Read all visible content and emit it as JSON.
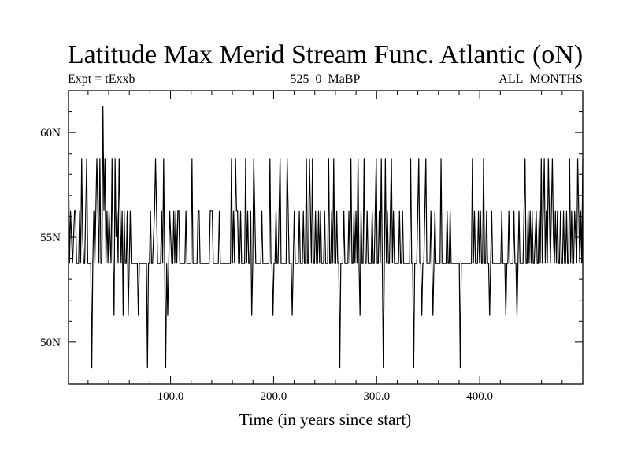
{
  "chart_data": {
    "type": "line",
    "title": "Latitude Max Merid Stream Func. Atlantic (oN)",
    "subtitle_left": "Expt = tExxb",
    "subtitle_center": "525_0_MaBP",
    "subtitle_right": "ALL_MONTHS",
    "xlabel": "Time (in years since start)",
    "ylabel": "",
    "xlim": [
      1,
      500
    ],
    "ylim": [
      48,
      62
    ],
    "x_ticks": [
      100,
      200,
      300,
      400
    ],
    "x_tick_labels": [
      "100.0",
      "200.0",
      "300.0",
      "400.0"
    ],
    "y_ticks": [
      50,
      55,
      60
    ],
    "y_tick_labels": [
      "50N",
      "55N",
      "60N"
    ],
    "grid": false,
    "series": [
      {
        "values": [
          58.75,
          53.75,
          56.25,
          55.0,
          53.75,
          55.0,
          56.25,
          56.25,
          53.75,
          53.75,
          53.75,
          56.25,
          53.75,
          58.75,
          55.0,
          53.75,
          53.75,
          56.25,
          58.75,
          53.75,
          53.75,
          53.75,
          53.75,
          48.75,
          53.75,
          56.25,
          53.75,
          56.25,
          58.75,
          56.25,
          53.75,
          58.75,
          53.75,
          53.75,
          61.25,
          56.25,
          58.75,
          53.75,
          56.25,
          53.75,
          56.25,
          55.0,
          53.75,
          58.75,
          53.75,
          51.25,
          58.75,
          55.0,
          56.25,
          53.75,
          58.75,
          56.25,
          53.75,
          56.25,
          51.25,
          56.25,
          53.75,
          53.75,
          56.25,
          51.25,
          53.75,
          56.25,
          53.75,
          53.75,
          53.75,
          53.75,
          53.75,
          53.75,
          53.75,
          51.25,
          53.75,
          53.75,
          53.75,
          53.75,
          53.75,
          53.75,
          53.75,
          53.75,
          48.75,
          53.75,
          53.75,
          56.25,
          53.75,
          53.75,
          55.0,
          56.25,
          58.75,
          56.25,
          53.75,
          53.75,
          53.75,
          53.75,
          56.25,
          53.75,
          58.75,
          53.75,
          48.75,
          53.75,
          51.25,
          53.75,
          56.25,
          55.0,
          53.75,
          53.75,
          56.25,
          53.75,
          56.25,
          53.75,
          56.25,
          56.25,
          53.75,
          53.75,
          53.75,
          53.75,
          53.75,
          53.75,
          56.25,
          53.75,
          53.75,
          53.75,
          53.75,
          53.75,
          58.75,
          53.75,
          53.75,
          53.75,
          53.75,
          53.75,
          56.25,
          56.25,
          53.75,
          53.75,
          53.75,
          53.75,
          53.75,
          53.75,
          53.75,
          53.75,
          53.75,
          53.75,
          56.25,
          56.25,
          56.25,
          53.75,
          53.75,
          53.75,
          53.75,
          53.75,
          53.75,
          56.25,
          53.75,
          53.75,
          53.75,
          53.75,
          53.75,
          53.75,
          53.75,
          53.75,
          53.75,
          53.75,
          53.75,
          58.75,
          53.75,
          56.25,
          53.75,
          58.75,
          56.25,
          56.25,
          53.75,
          53.75,
          56.25,
          53.75,
          53.75,
          53.75,
          53.75,
          58.75,
          53.75,
          56.25,
          53.75,
          53.75,
          56.25,
          51.25,
          53.75,
          58.75,
          56.25,
          53.75,
          53.75,
          53.75,
          53.75,
          53.75,
          53.75,
          56.25,
          53.75,
          53.75,
          53.75,
          53.75,
          53.75,
          53.75,
          53.75,
          58.75,
          53.75,
          53.75,
          51.25,
          53.75,
          53.75,
          56.25,
          53.75,
          53.75,
          56.25,
          58.75,
          53.75,
          53.75,
          53.75,
          53.75,
          53.75,
          53.75,
          58.75,
          56.25,
          53.75,
          53.75,
          53.75,
          51.25,
          53.75,
          56.25,
          53.75,
          53.75,
          53.75,
          53.75,
          56.25,
          53.75,
          53.75,
          53.75,
          56.25,
          53.75,
          53.75,
          58.75,
          53.75,
          53.75,
          58.75,
          56.25,
          53.75,
          58.75,
          53.75,
          53.75,
          56.25,
          53.75,
          53.75,
          56.25,
          53.75,
          56.25,
          53.75,
          53.75,
          53.75,
          56.25,
          53.75,
          53.75,
          53.75,
          58.75,
          53.75,
          53.75,
          56.25,
          53.75,
          58.75,
          53.75,
          53.75,
          56.25,
          53.75,
          53.75,
          48.75,
          53.75,
          53.75,
          53.75,
          56.25,
          53.75,
          53.75,
          53.75,
          53.75,
          56.25,
          53.75,
          58.75,
          53.75,
          53.75,
          56.25,
          53.75,
          56.25,
          53.75,
          58.75,
          53.75,
          51.25,
          56.25,
          53.75,
          53.75,
          58.75,
          53.75,
          53.75,
          56.25,
          53.75,
          53.75,
          53.75,
          53.75,
          56.25,
          53.75,
          53.75,
          56.25,
          58.75,
          53.75,
          53.75,
          56.25,
          53.75,
          58.75,
          53.75,
          48.75,
          53.75,
          58.75,
          53.75,
          56.25,
          53.75,
          53.75,
          56.25,
          58.75,
          53.75,
          56.25,
          53.75,
          53.75,
          53.75,
          53.75,
          53.75,
          56.25,
          53.75,
          53.75,
          56.25,
          53.75,
          53.75,
          53.75,
          53.75,
          53.75,
          53.75,
          53.75,
          58.75,
          53.75,
          53.75,
          48.75,
          53.75,
          53.75,
          53.75,
          56.25,
          58.75,
          53.75,
          53.75,
          51.25,
          53.75,
          53.75,
          56.25,
          58.75,
          53.75,
          53.75,
          53.75,
          53.75,
          56.25,
          53.75,
          51.25,
          53.75,
          56.25,
          53.75,
          53.75,
          53.75,
          53.75,
          53.75,
          58.75,
          53.75,
          53.75,
          53.75,
          53.75,
          53.75,
          56.25,
          53.75,
          53.75,
          56.25,
          53.75,
          53.75,
          53.75,
          53.75,
          53.75,
          53.75,
          53.75,
          53.75,
          53.75,
          48.75,
          53.75,
          53.75,
          53.75,
          53.75,
          53.75,
          53.75,
          53.75,
          53.75,
          53.75,
          53.75,
          53.75,
          58.75,
          53.75,
          56.25,
          53.75,
          53.75,
          53.75,
          56.25,
          53.75,
          56.25,
          53.75,
          53.75,
          58.75,
          53.75,
          53.75,
          56.25,
          53.75,
          53.75,
          51.25,
          53.75,
          56.25,
          53.75,
          53.75,
          53.75,
          53.75,
          53.75,
          53.75,
          53.75,
          53.75,
          53.75,
          56.25,
          53.75,
          53.75,
          53.75,
          51.25,
          53.75,
          53.75,
          56.25,
          53.75,
          53.75,
          53.75,
          53.75,
          56.25,
          53.75,
          53.75,
          51.25,
          53.75,
          56.25,
          53.75,
          53.75,
          53.75,
          53.75,
          56.25,
          58.75,
          53.75,
          53.75,
          56.25,
          53.75,
          56.25,
          53.75,
          56.25,
          53.75,
          53.75,
          55.0,
          56.25,
          53.75,
          53.75,
          56.25,
          53.75,
          58.75,
          53.75,
          56.25,
          58.75,
          53.75,
          56.25,
          53.75,
          58.75,
          56.25,
          53.75,
          56.25,
          58.75,
          55.0,
          53.75,
          56.25,
          53.75,
          56.25,
          53.75,
          53.75,
          56.25,
          53.75,
          53.75,
          56.25,
          53.75,
          53.75,
          56.25,
          53.75,
          53.75,
          58.75,
          53.75,
          56.25,
          53.75,
          53.75,
          56.25,
          55.0,
          53.75,
          58.75,
          56.25,
          53.75,
          56.25,
          53.75,
          58.75
        ]
      }
    ]
  }
}
